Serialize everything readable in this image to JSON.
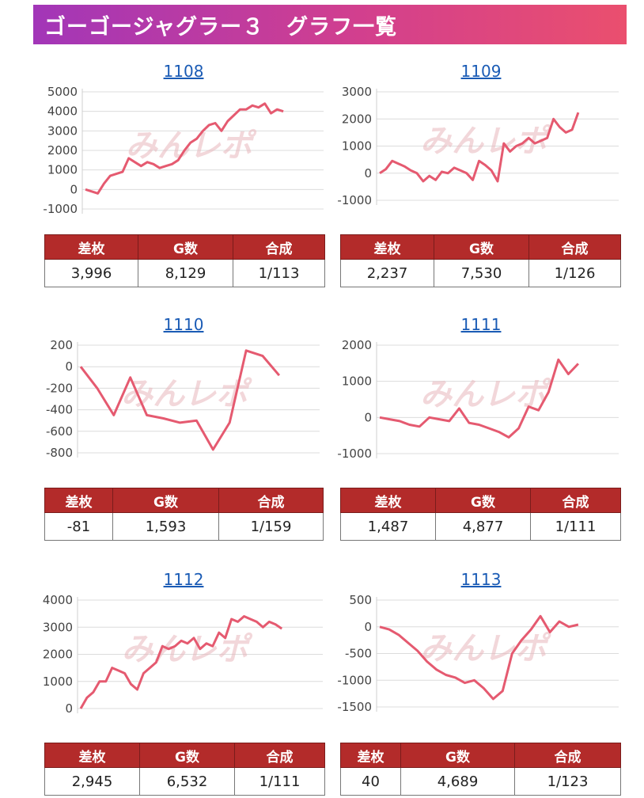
{
  "page": {
    "title": "ゴーゴージャグラー３　グラフ一覧",
    "watermark": "みんレポ"
  },
  "colors": {
    "header_start": "#a236b8",
    "header_end": "#ea4f6e",
    "line": "#e55a70",
    "table_header": "#b32b2a",
    "link": "#1a5bb5"
  },
  "table_headers": [
    "差枚",
    "G数",
    "合成"
  ],
  "panels": [
    {
      "machine": "1108",
      "stats": [
        "3,996",
        "8,129",
        "1/113"
      ],
      "chart_data": {
        "type": "line",
        "yticks": [
          5000,
          4000,
          3000,
          2000,
          1000,
          0,
          -1000
        ],
        "ylim": [
          -1000,
          5000
        ],
        "x": [
          0,
          1,
          2,
          3,
          4,
          5,
          6,
          7,
          8,
          9,
          10,
          11,
          12,
          13,
          14,
          15,
          16,
          17,
          18,
          19,
          20,
          21,
          22,
          23,
          24,
          25,
          26,
          27,
          28,
          29,
          30,
          31,
          32
        ],
        "values": [
          0,
          -100,
          -200,
          300,
          700,
          800,
          900,
          1600,
          1400,
          1200,
          1400,
          1300,
          1100,
          1200,
          1300,
          1500,
          2000,
          2400,
          2600,
          3000,
          3300,
          3400,
          3000,
          3500,
          3800,
          4100,
          4100,
          4300,
          4200,
          4400,
          3900,
          4100,
          4000
        ]
      }
    },
    {
      "machine": "1109",
      "stats": [
        "2,237",
        "7,530",
        "1/126"
      ],
      "chart_data": {
        "type": "line",
        "yticks": [
          3000,
          2000,
          1000,
          0,
          -1000
        ],
        "ylim": [
          -1000,
          3000
        ],
        "x": [
          0,
          1,
          2,
          3,
          4,
          5,
          6,
          7,
          8,
          9,
          10,
          11,
          12,
          13,
          14,
          15,
          16,
          17,
          18,
          19,
          20,
          21,
          22,
          23,
          24,
          25,
          26,
          27,
          28,
          29,
          30,
          31,
          32
        ],
        "values": [
          0,
          150,
          450,
          350,
          250,
          100,
          0,
          -300,
          -100,
          -250,
          50,
          0,
          200,
          100,
          0,
          -250,
          450,
          300,
          100,
          -300,
          1100,
          800,
          1000,
          1100,
          1300,
          1100,
          1200,
          1300,
          2000,
          1700,
          1500,
          1600,
          2237
        ]
      }
    },
    {
      "machine": "1110",
      "stats": [
        "-81",
        "1,593",
        "1/159"
      ],
      "chart_data": {
        "type": "line",
        "yticks": [
          200,
          0,
          -200,
          -400,
          -600,
          -800
        ],
        "ylim": [
          -800,
          200
        ],
        "x": [
          0,
          1,
          2,
          3,
          4,
          5,
          6,
          7,
          8,
          9,
          10,
          11,
          12
        ],
        "values": [
          0,
          -200,
          -450,
          -100,
          -450,
          -480,
          -520,
          -500,
          -770,
          -520,
          150,
          100,
          -81
        ]
      }
    },
    {
      "machine": "1111",
      "stats": [
        "1,487",
        "4,877",
        "1/111"
      ],
      "chart_data": {
        "type": "line",
        "yticks": [
          2000,
          1000,
          0,
          -1000
        ],
        "ylim": [
          -1000,
          2000
        ],
        "x": [
          0,
          1,
          2,
          3,
          4,
          5,
          6,
          7,
          8,
          9,
          10,
          11,
          12,
          13,
          14,
          15,
          16,
          17,
          18,
          19,
          20
        ],
        "values": [
          0,
          -50,
          -100,
          -200,
          -250,
          0,
          -50,
          -100,
          250,
          -150,
          -200,
          -300,
          -400,
          -550,
          -300,
          300,
          200,
          700,
          1600,
          1200,
          1487
        ]
      }
    },
    {
      "machine": "1112",
      "stats": [
        "2,945",
        "6,532",
        "1/111"
      ],
      "chart_data": {
        "type": "line",
        "yticks": [
          4000,
          3000,
          2000,
          1000,
          0
        ],
        "ylim": [
          0,
          4000
        ],
        "x": [
          0,
          1,
          2,
          3,
          4,
          5,
          6,
          7,
          8,
          9,
          10,
          11,
          12,
          13,
          14,
          15,
          16,
          17,
          18,
          19,
          20,
          21,
          22,
          23,
          24,
          25,
          26,
          27,
          28,
          29,
          30,
          31,
          32
        ],
        "values": [
          0,
          400,
          600,
          1000,
          1000,
          1500,
          1400,
          1300,
          900,
          700,
          1300,
          1500,
          1700,
          2300,
          2200,
          2300,
          2500,
          2400,
          2600,
          2200,
          2400,
          2300,
          2800,
          2600,
          3300,
          3200,
          3400,
          3300,
          3200,
          3000,
          3200,
          3100,
          2945
        ]
      }
    },
    {
      "machine": "1113",
      "stats": [
        "40",
        "4,689",
        "1/123"
      ],
      "chart_data": {
        "type": "line",
        "yticks": [
          500,
          0,
          -500,
          -1000,
          -1500
        ],
        "ylim": [
          -1500,
          500
        ],
        "x": [
          0,
          1,
          2,
          3,
          4,
          5,
          6,
          7,
          8,
          9,
          10,
          11,
          12,
          13,
          14,
          15,
          16,
          17,
          18,
          19,
          20,
          21
        ],
        "values": [
          0,
          -50,
          -150,
          -300,
          -450,
          -650,
          -800,
          -900,
          -950,
          -1050,
          -1000,
          -1150,
          -1350,
          -1200,
          -500,
          -250,
          -50,
          200,
          -100,
          100,
          0,
          40
        ]
      }
    }
  ]
}
